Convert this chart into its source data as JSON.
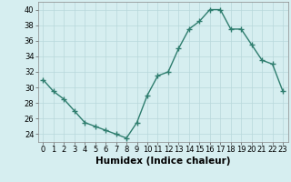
{
  "x": [
    0,
    1,
    2,
    3,
    4,
    5,
    6,
    7,
    8,
    9,
    10,
    11,
    12,
    13,
    14,
    15,
    16,
    17,
    18,
    19,
    20,
    21,
    22,
    23
  ],
  "y": [
    31,
    29.5,
    28.5,
    27,
    25.5,
    25,
    24.5,
    24,
    23.5,
    25.5,
    29,
    31.5,
    32,
    35,
    37.5,
    38.5,
    40,
    40,
    37.5,
    37.5,
    35.5,
    33.5,
    33,
    29.5
  ],
  "xlabel": "Humidex (Indice chaleur)",
  "ylim": [
    23,
    41
  ],
  "xlim": [
    -0.5,
    23.5
  ],
  "yticks": [
    24,
    26,
    28,
    30,
    32,
    34,
    36,
    38,
    40
  ],
  "xticks": [
    0,
    1,
    2,
    3,
    4,
    5,
    6,
    7,
    8,
    9,
    10,
    11,
    12,
    13,
    14,
    15,
    16,
    17,
    18,
    19,
    20,
    21,
    22,
    23
  ],
  "line_color": "#2e7d6e",
  "marker": "+",
  "bg_color": "#d6eef0",
  "grid_color": "#b8d8db",
  "tick_fontsize": 6,
  "xlabel_fontsize": 7.5,
  "marker_size": 4,
  "line_width": 1.0
}
